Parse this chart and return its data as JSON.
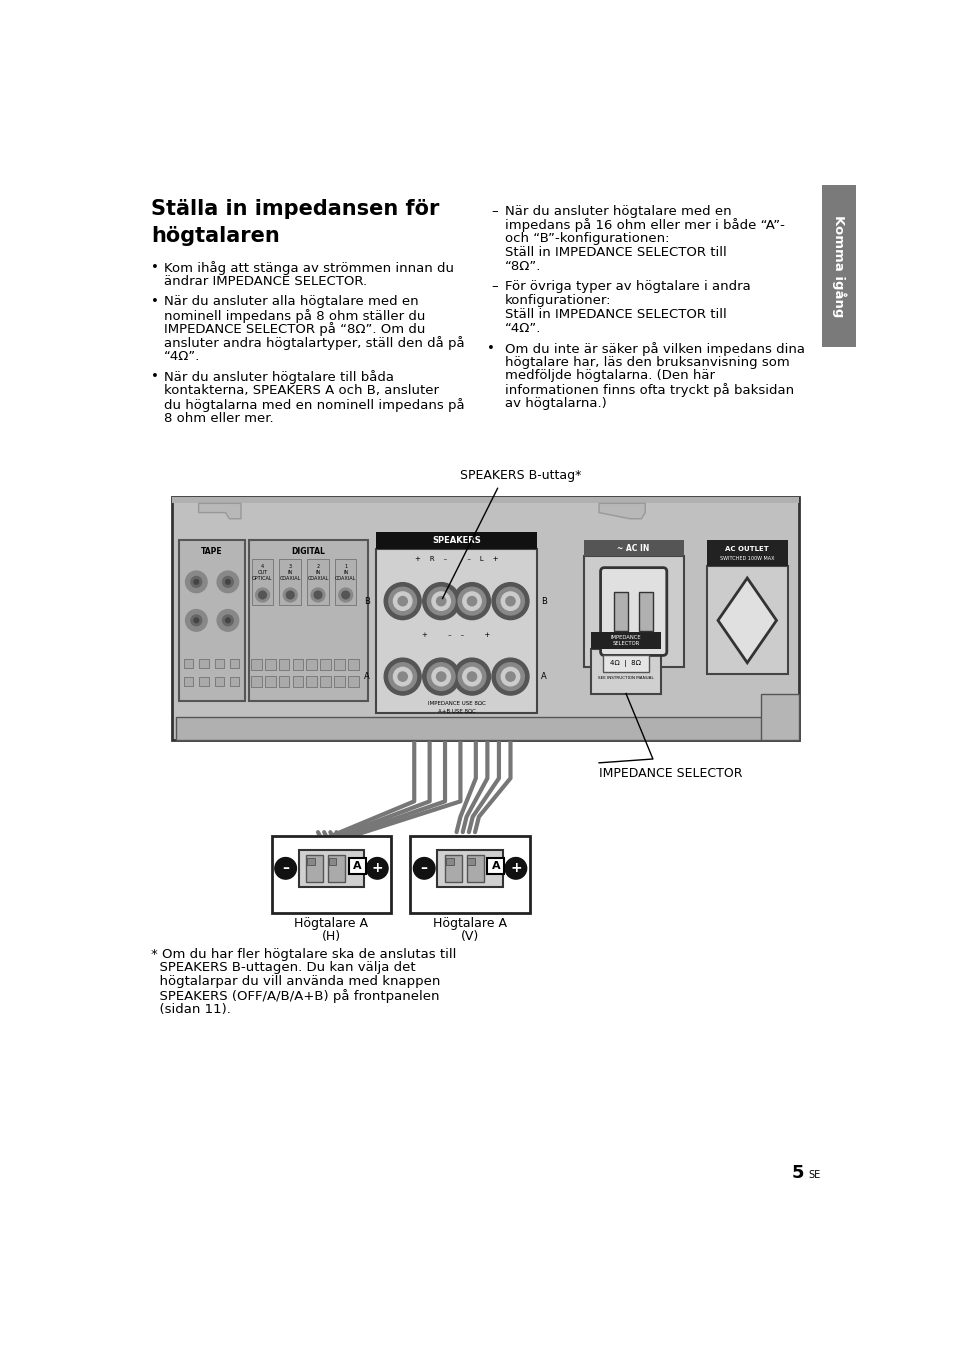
{
  "bg_color": "#ffffff",
  "title_line1": "Ställa in impedansen för",
  "title_line2": "högtalaren",
  "sidebar_text": "Komma igång",
  "sidebar_color": "#7a7a7a",
  "body_fontsize": 9.5,
  "title_fontsize": 15,
  "bullet1_left": "Kom ihåg att stänga av strömmen innan du ändrar IMPEDANCE SELECTOR.",
  "bullet2_left": "När du ansluter alla högtalare med en nominell impedans på 8 ohm ställer du IMPEDANCE SELECTOR på “8Ω”. Om du ansluter andra högtalartyper, ställ den då på “4Ω”.",
  "bullet3_left": "När du ansluter högtalare till båda kontakterna, SPEAKERS A och B, ansluter du högtalarna med en nominell impedans på 8 ohm eller mer.",
  "dash1_right_line1": "När du ansluter högtalare med en",
  "dash1_right_line2": "impedans på 16 ohm eller mer i både “A”-",
  "dash1_right_line3": "och “B”-konfigurationen:",
  "dash1_right_line4": "Ställ in IMPEDANCE SELECTOR till",
  "dash1_right_line5": "“8Ω”.",
  "dash2_right_line1": "För övriga typer av högtalare i andra",
  "dash2_right_line2": "konfigurationer:",
  "dash2_right_line3": "Ställ in IMPEDANCE SELECTOR till",
  "dash2_right_line4": "“4Ω”.",
  "bullet4_right_line1": "Om du inte är säker på vilken impedans dina",
  "bullet4_right_line2": "högtalare har, läs den bruksanvisning som",
  "bullet4_right_line3": "medföljde högtalarna. (Den här",
  "bullet4_right_line4": "informationen finns ofta tryckt på baksidan",
  "bullet4_right_line5": "av högtalarna.)",
  "callout_speakers_b": "SPEAKERS B-uttag*",
  "callout_impedance": "IMPEDANCE SELECTOR",
  "footnote_line1": "* Om du har fler högtalare ska de anslutas till",
  "footnote_line2": "  SPEAKERS B-uttagen. Du kan välja det",
  "footnote_line3": "  högtalarpar du vill använda med knappen",
  "footnote_line4": "  SPEAKERS (OFF/A/B/A+B) på frontpanelen",
  "footnote_line5": "  (sidan 11).",
  "page_number": "5",
  "page_suffix": "SE",
  "amp_color": "#c0c0c0",
  "amp_dark": "#a0a0a0",
  "speakers_black": "#111111",
  "terminal_dark": "#444444",
  "terminal_mid": "#888888",
  "terminal_light": "#cccccc"
}
